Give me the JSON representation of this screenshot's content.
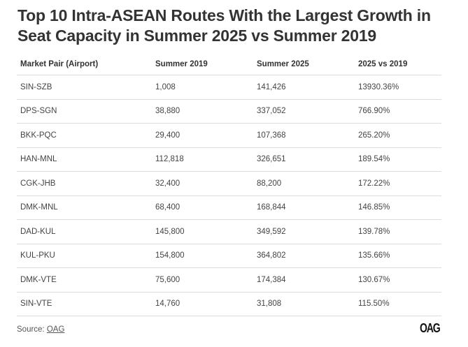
{
  "title": "Top 10 Intra-ASEAN Routes With the Largest Growth in Seat Capacity in Summer 2025 vs Summer 2019",
  "chart_data": {
    "type": "table",
    "title": "Top 10 Intra-ASEAN Routes With the Largest Growth in Seat Capacity in Summer 2025 vs Summer 2019",
    "columns": [
      "Market Pair (Airport)",
      "Summer 2019",
      "Summer 2025",
      "2025 vs 2019"
    ],
    "rows": [
      [
        "SIN-SZB",
        "1,008",
        "141,426",
        "13930.36%"
      ],
      [
        "DPS-SGN",
        "38,880",
        "337,052",
        "766.90%"
      ],
      [
        "BKK-PQC",
        "29,400",
        "107,368",
        "265.20%"
      ],
      [
        "HAN-MNL",
        "112,818",
        "326,651",
        "189.54%"
      ],
      [
        "CGK-JHB",
        "32,400",
        "88,200",
        "172.22%"
      ],
      [
        "DMK-MNL",
        "68,400",
        "168,844",
        "146.85%"
      ],
      [
        "DAD-KUL",
        "145,800",
        "349,592",
        "139.78%"
      ],
      [
        "KUL-PKU",
        "154,800",
        "364,802",
        "135.66%"
      ],
      [
        "DMK-VTE",
        "75,600",
        "174,384",
        "130.67%"
      ],
      [
        "SIN-VTE",
        "14,760",
        "31,808",
        "115.50%"
      ]
    ]
  },
  "footer": {
    "source_label": "Source: ",
    "source_link": "OAG",
    "logo": "OAG"
  }
}
